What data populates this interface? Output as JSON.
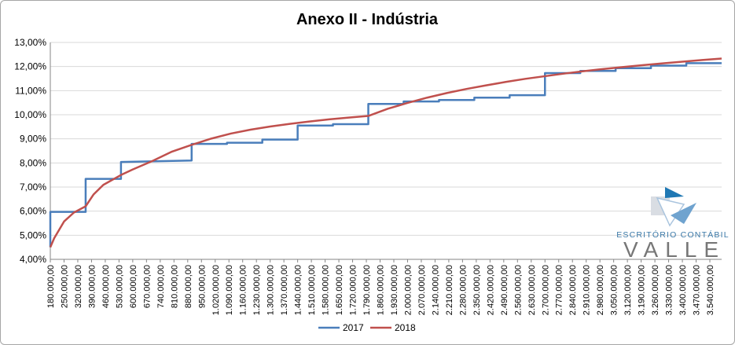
{
  "chart_data": {
    "type": "line",
    "title": "Anexo II - Indústria",
    "xlabel": "",
    "ylabel": "",
    "ylim": [
      0.04,
      0.13
    ],
    "y_ticks": [
      "4,00%",
      "5,00%",
      "6,00%",
      "7,00%",
      "8,00%",
      "9,00%",
      "10,00%",
      "11,00%",
      "12,00%",
      "13,00%"
    ],
    "x_range": [
      180000,
      3600000
    ],
    "x_tick_step": 70000,
    "grid": true,
    "legend_position": "bottom",
    "series": [
      {
        "name": "2017",
        "color": "#4a7ebb",
        "step": true,
        "points": [
          [
            180000,
            0.045
          ],
          [
            180000.01,
            0.0597
          ],
          [
            360000,
            0.0597
          ],
          [
            360000.01,
            0.0734
          ],
          [
            540000,
            0.0734
          ],
          [
            540000.01,
            0.0804
          ],
          [
            900000,
            0.081
          ],
          [
            900000.01,
            0.0879
          ],
          [
            1080000,
            0.0879
          ],
          [
            1080000.01,
            0.0884
          ],
          [
            1260000,
            0.0884
          ],
          [
            1260000.01,
            0.0897
          ],
          [
            1440000,
            0.0897
          ],
          [
            1440000.01,
            0.0955
          ],
          [
            1620000,
            0.0955
          ],
          [
            1620000.01,
            0.0961
          ],
          [
            1800000,
            0.0961
          ],
          [
            1800000.01,
            0.1045
          ],
          [
            1980000,
            0.1045
          ],
          [
            1980000.01,
            0.1055
          ],
          [
            2160000,
            0.1055
          ],
          [
            2160000.01,
            0.1061
          ],
          [
            2340000,
            0.1061
          ],
          [
            2340000.01,
            0.1071
          ],
          [
            2520000,
            0.1071
          ],
          [
            2520000.01,
            0.1081
          ],
          [
            2700000,
            0.1081
          ],
          [
            2700000.01,
            0.1173
          ],
          [
            2880000,
            0.1173
          ],
          [
            2880000.01,
            0.1182
          ],
          [
            3060000,
            0.1182
          ],
          [
            3060000.01,
            0.1193
          ],
          [
            3240000,
            0.1193
          ],
          [
            3240000.01,
            0.1204
          ],
          [
            3420000,
            0.1204
          ],
          [
            3420000.01,
            0.1214
          ],
          [
            3600000,
            0.1214
          ]
        ]
      },
      {
        "name": "2018",
        "color": "#c0504d",
        "step": false,
        "points": [
          [
            180000,
            0.045
          ],
          [
            200000,
            0.0488
          ],
          [
            250000,
            0.0557
          ],
          [
            300000,
            0.0594
          ],
          [
            360000,
            0.062
          ],
          [
            360000.01,
            0.062
          ],
          [
            400000,
            0.0669
          ],
          [
            450000,
            0.0709
          ],
          [
            540000,
            0.075
          ],
          [
            540000.01,
            0.075
          ],
          [
            600000,
            0.0773
          ],
          [
            700000,
            0.0808
          ],
          [
            800000,
            0.0847
          ],
          [
            900000,
            0.0875
          ],
          [
            1000000,
            0.0901
          ],
          [
            1100000,
            0.0922
          ],
          [
            1200000,
            0.0938
          ],
          [
            1300000,
            0.0951
          ],
          [
            1400000,
            0.0962
          ],
          [
            1500000,
            0.0972
          ],
          [
            1600000,
            0.0981
          ],
          [
            1700000,
            0.0988
          ],
          [
            1800000,
            0.0995
          ],
          [
            1900000,
            0.1025
          ],
          [
            2000000,
            0.1049
          ],
          [
            2100000,
            0.1071
          ],
          [
            2200000,
            0.109
          ],
          [
            2300000,
            0.1107
          ],
          [
            2400000,
            0.1122
          ],
          [
            2500000,
            0.1136
          ],
          [
            2600000,
            0.1149
          ],
          [
            2700000,
            0.116
          ],
          [
            2800000,
            0.1171
          ],
          [
            2900000,
            0.1181
          ],
          [
            3000000,
            0.119
          ],
          [
            3100000,
            0.1198
          ],
          [
            3200000,
            0.1206
          ],
          [
            3300000,
            0.1213
          ],
          [
            3400000,
            0.122
          ],
          [
            3500000,
            0.1227
          ],
          [
            3600000,
            0.1233
          ]
        ]
      }
    ]
  },
  "logo": {
    "line1": "ESCRITÓRIO CONTÁBIL",
    "line2": "VALLE",
    "colors": {
      "blue": "#2e86c1",
      "light_blue": "#a9c4de",
      "gray": "#777777"
    }
  }
}
